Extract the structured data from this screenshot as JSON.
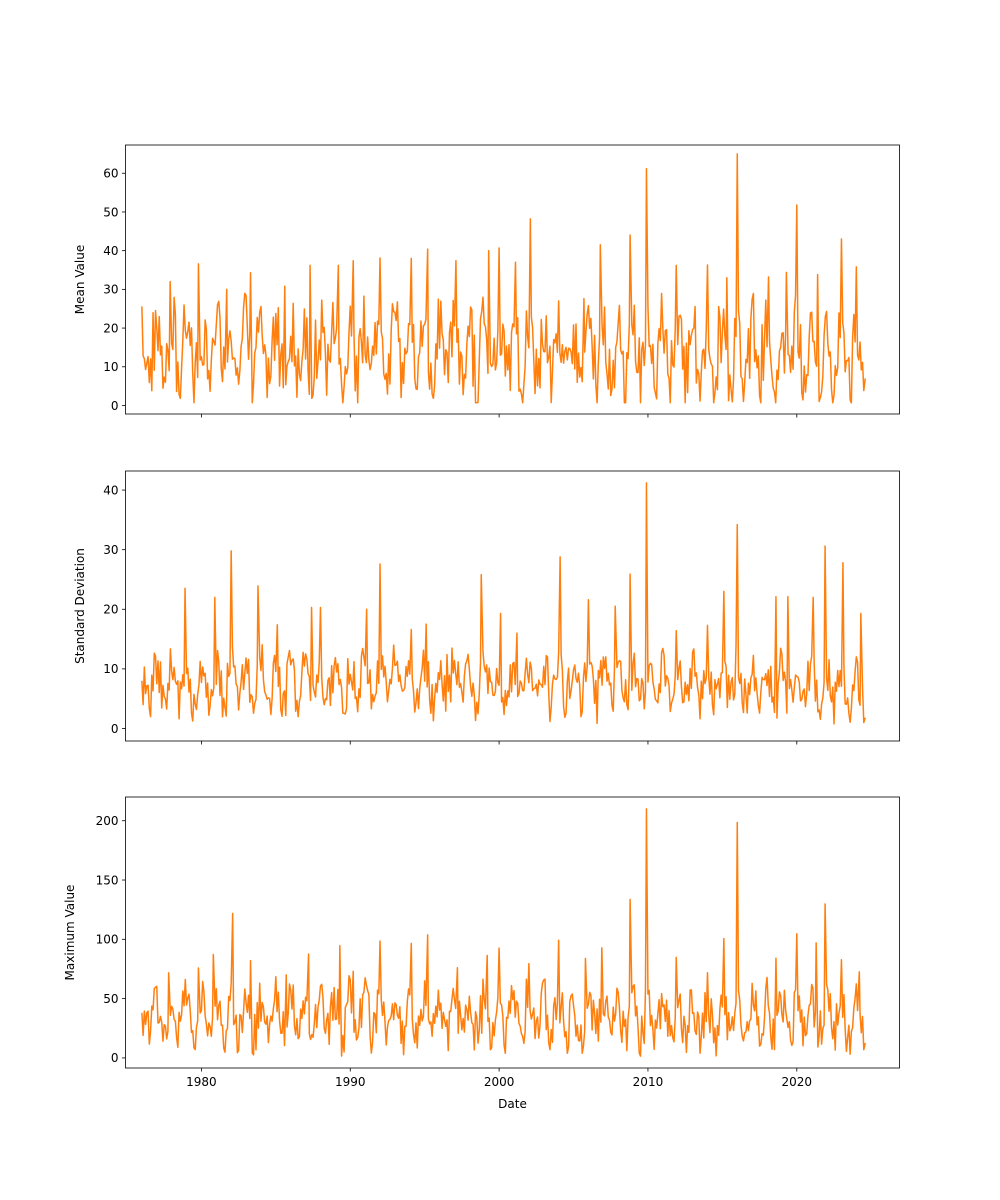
{
  "figure": {
    "line_color": "#ff7f0e",
    "background": "#ffffff"
  },
  "chart_data": [
    {
      "type": "line",
      "ylabel": "Mean Value",
      "xlabel": "",
      "x_range": [
        1976.0,
        2024.6
      ],
      "xlim": [
        1974.9,
        2026.9
      ],
      "ylim": [
        -2.2,
        67.3
      ],
      "yticks": [
        0,
        10,
        20,
        30,
        40,
        50,
        60
      ],
      "xticks": [
        1980,
        1990,
        2000,
        2010,
        2020
      ],
      "show_xtick_labels": false,
      "baseline": 14,
      "amplitude": 13,
      "floor": 0.7,
      "peaks": [
        [
          1976.0,
          25.6
        ],
        [
          1977.9,
          32.0
        ],
        [
          1979.8,
          36.6
        ],
        [
          1981.7,
          30.0
        ],
        [
          1983.3,
          34.3
        ],
        [
          1985.6,
          30.8
        ],
        [
          1987.3,
          36.2
        ],
        [
          1989.2,
          36.2
        ],
        [
          1990.2,
          37.4
        ],
        [
          1992.0,
          38.1
        ],
        [
          1994.1,
          38.0
        ],
        [
          1995.2,
          40.4
        ],
        [
          1997.1,
          37.4
        ],
        [
          1999.3,
          40.0
        ],
        [
          2000.0,
          40.7
        ],
        [
          2001.1,
          37.0
        ],
        [
          2002.1,
          48.2
        ],
        [
          2004.0,
          27.0
        ],
        [
          2005.7,
          27.6
        ],
        [
          2006.8,
          41.5
        ],
        [
          2008.8,
          44.0
        ],
        [
          2009.9,
          61.2
        ],
        [
          2011.9,
          36.2
        ],
        [
          2014.0,
          36.3
        ],
        [
          2015.3,
          33.0
        ],
        [
          2016.0,
          65.0
        ],
        [
          2018.1,
          33.2
        ],
        [
          2019.3,
          34.4
        ],
        [
          2020.0,
          51.8
        ],
        [
          2021.4,
          33.8
        ],
        [
          2023.0,
          43.0
        ],
        [
          2024.0,
          35.8
        ],
        [
          2024.6,
          7.0
        ]
      ]
    },
    {
      "type": "line",
      "ylabel": "Standard Deviation",
      "xlabel": "",
      "x_range": [
        1976.0,
        2024.6
      ],
      "xlim": [
        1974.9,
        2026.9
      ],
      "ylim": [
        -2.1,
        43.2
      ],
      "yticks": [
        0,
        10,
        20,
        30,
        40
      ],
      "xticks": [
        1980,
        1990,
        2000,
        2010,
        2020
      ],
      "show_xtick_labels": false,
      "baseline": 7.5,
      "amplitude": 5.5,
      "floor": 0.3,
      "peaks": [
        [
          1976.0,
          8.0
        ],
        [
          1978.9,
          23.5
        ],
        [
          1980.9,
          22.0
        ],
        [
          1982.0,
          29.8
        ],
        [
          1983.8,
          23.9
        ],
        [
          1985.1,
          17.4
        ],
        [
          1987.4,
          20.3
        ],
        [
          1988.0,
          20.3
        ],
        [
          1991.1,
          20.0
        ],
        [
          1992.0,
          27.6
        ],
        [
          1994.1,
          16.6
        ],
        [
          1995.1,
          17.5
        ],
        [
          1996.5,
          12.4
        ],
        [
          1998.8,
          25.8
        ],
        [
          2000.1,
          19.3
        ],
        [
          2001.2,
          16.0
        ],
        [
          2004.1,
          28.8
        ],
        [
          2006.0,
          21.6
        ],
        [
          2007.8,
          20.5
        ],
        [
          2008.8,
          25.9
        ],
        [
          2009.9,
          41.2
        ],
        [
          2011.9,
          16.4
        ],
        [
          2014.0,
          17.3
        ],
        [
          2015.1,
          23.0
        ],
        [
          2016.0,
          34.2
        ],
        [
          2018.6,
          22.1
        ],
        [
          2019.4,
          22.1
        ],
        [
          2021.1,
          22.0
        ],
        [
          2021.9,
          30.6
        ],
        [
          2023.1,
          27.8
        ],
        [
          2024.3,
          19.3
        ],
        [
          2024.6,
          1.8
        ]
      ]
    },
    {
      "type": "line",
      "ylabel": "Maximum Value",
      "xlabel": "Date",
      "x_range": [
        1976.0,
        2024.6
      ],
      "xlim": [
        1974.9,
        2026.9
      ],
      "ylim": [
        -8.5,
        220.0
      ],
      "yticks": [
        0,
        50,
        100,
        150,
        200
      ],
      "xticks": [
        1980,
        1990,
        2000,
        2010,
        2020
      ],
      "show_xtick_labels": true,
      "baseline": 35,
      "amplitude": 28,
      "floor": 1.5,
      "peaks": [
        [
          1976.0,
          38.0
        ],
        [
          1977.8,
          71.7
        ],
        [
          1979.8,
          75.8
        ],
        [
          1980.8,
          87.2
        ],
        [
          1982.1,
          121.8
        ],
        [
          1983.3,
          82.0
        ],
        [
          1985.7,
          70.0
        ],
        [
          1987.2,
          87.6
        ],
        [
          1989.3,
          94.6
        ],
        [
          1990.2,
          73.0
        ],
        [
          1992.0,
          98.5
        ],
        [
          1994.1,
          96.6
        ],
        [
          1995.2,
          103.7
        ],
        [
          1997.2,
          76.0
        ],
        [
          1999.2,
          86.4
        ],
        [
          2000.0,
          92.6
        ],
        [
          2002.0,
          79.5
        ],
        [
          2004.0,
          99.2
        ],
        [
          2005.8,
          83.8
        ],
        [
          2006.9,
          92.8
        ],
        [
          2008.8,
          133.6
        ],
        [
          2009.9,
          210.0
        ],
        [
          2011.9,
          84.8
        ],
        [
          2014.0,
          71.8
        ],
        [
          2015.1,
          100.7
        ],
        [
          2016.0,
          198.5
        ],
        [
          2018.6,
          84.0
        ],
        [
          2020.0,
          104.7
        ],
        [
          2021.3,
          97.0
        ],
        [
          2021.9,
          129.8
        ],
        [
          2023.0,
          82.8
        ],
        [
          2024.2,
          72.6
        ],
        [
          2024.6,
          12.5
        ]
      ]
    }
  ]
}
